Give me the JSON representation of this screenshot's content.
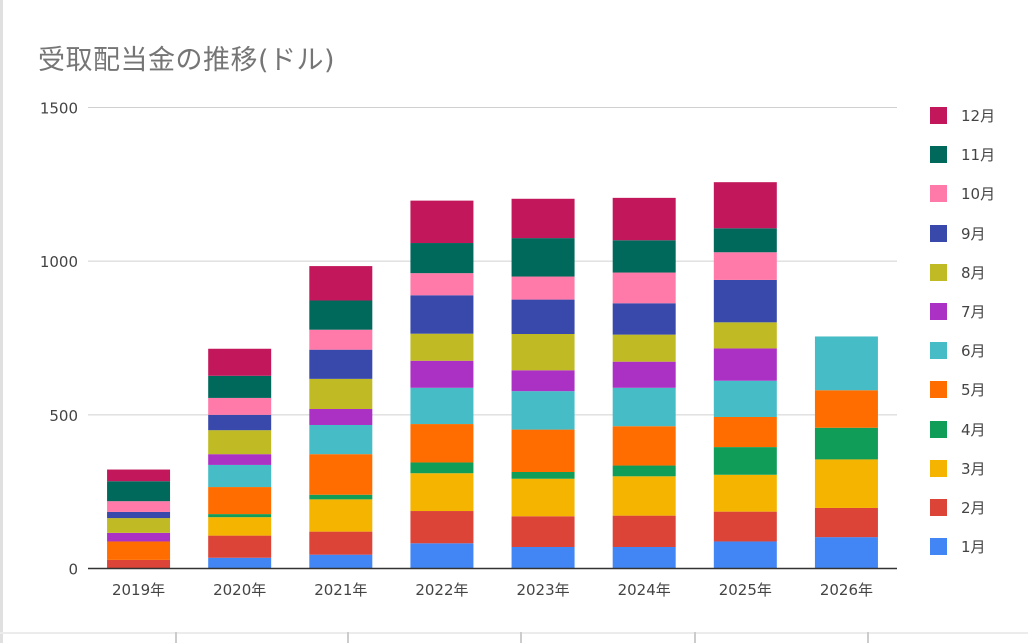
{
  "chart_data": {
    "type": "bar",
    "stacked": true,
    "title": "受取配当金の推移(ドル)",
    "xlabel": "",
    "ylabel": "",
    "ylim": [
      0,
      1500
    ],
    "yticks": [
      "0",
      "500",
      "1000",
      "1500"
    ],
    "grid": true,
    "legend_position": "right",
    "categories": [
      "2019年",
      "2020年",
      "2021年",
      "2022年",
      "2023年",
      "2024年",
      "2025年",
      "2026年"
    ],
    "series": [
      {
        "name": "1月",
        "color": "#4285f4",
        "values": [
          0,
          35,
          45,
          82,
          70,
          70,
          88,
          102
        ]
      },
      {
        "name": "2月",
        "color": "#db4437",
        "values": [
          28,
          72,
          75,
          105,
          100,
          102,
          97,
          95
        ]
      },
      {
        "name": "3月",
        "color": "#f4b400",
        "values": [
          0,
          60,
          105,
          123,
          122,
          128,
          120,
          158
        ]
      },
      {
        "name": "4月",
        "color": "#0f9d58",
        "values": [
          0,
          10,
          15,
          35,
          22,
          35,
          90,
          103
        ]
      },
      {
        "name": "5月",
        "color": "#ff6d00",
        "values": [
          60,
          88,
          132,
          125,
          138,
          128,
          98,
          122
        ]
      },
      {
        "name": "6月",
        "color": "#46bdc6",
        "values": [
          0,
          72,
          95,
          118,
          125,
          125,
          118,
          175
        ]
      },
      {
        "name": "7月",
        "color": "#ab30c4",
        "values": [
          28,
          35,
          52,
          88,
          68,
          85,
          105,
          0
        ]
      },
      {
        "name": "8月",
        "color": "#c0bb24",
        "values": [
          48,
          78,
          98,
          88,
          118,
          88,
          85,
          0
        ]
      },
      {
        "name": "9月",
        "color": "#3949ab",
        "values": [
          20,
          50,
          95,
          125,
          112,
          102,
          138,
          0
        ]
      },
      {
        "name": "10月",
        "color": "#ff7aa8",
        "values": [
          35,
          55,
          65,
          72,
          75,
          100,
          90,
          0
        ]
      },
      {
        "name": "11月",
        "color": "#00695c",
        "values": [
          65,
          72,
          95,
          98,
          125,
          105,
          78,
          0
        ]
      },
      {
        "name": "12月",
        "color": "#c2185b",
        "values": [
          38,
          88,
          112,
          138,
          128,
          138,
          150,
          0
        ]
      }
    ]
  }
}
